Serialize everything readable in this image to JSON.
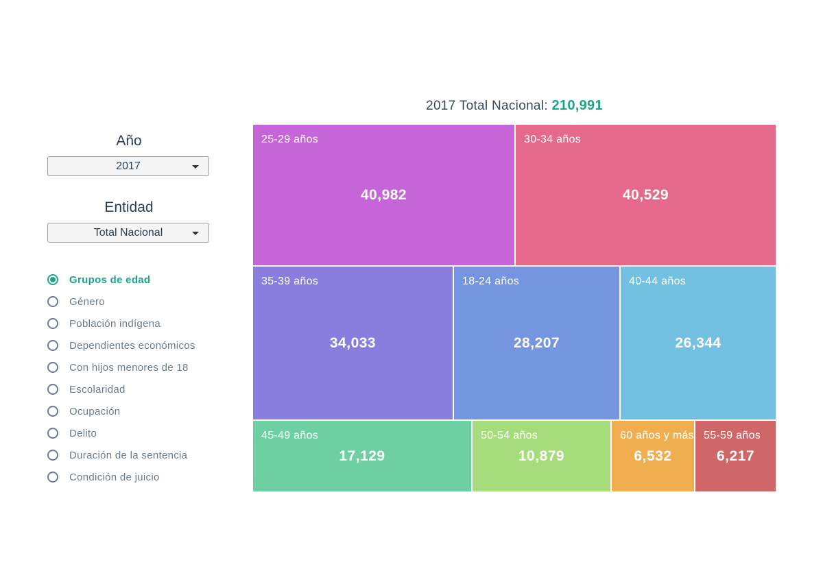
{
  "controls": {
    "year_label": "Año",
    "year_value": "2017",
    "entity_label": "Entidad",
    "entity_value": "Total Nacional"
  },
  "radios": [
    {
      "label": "Grupos de edad",
      "selected": true
    },
    {
      "label": "Género",
      "selected": false
    },
    {
      "label": "Población indígena",
      "selected": false
    },
    {
      "label": "Dependientes económicos",
      "selected": false
    },
    {
      "label": "Con hijos menores de 18",
      "selected": false
    },
    {
      "label": "Escolaridad",
      "selected": false
    },
    {
      "label": "Ocupación",
      "selected": false
    },
    {
      "label": "Delito",
      "selected": false
    },
    {
      "label": "Duración de la sentencia",
      "selected": false
    },
    {
      "label": "Condición de juicio",
      "selected": false
    }
  ],
  "colors": {
    "accent": "#1fa18a"
  },
  "chart_data": {
    "type": "treemap",
    "title_prefix": "2017 Total Nacional:",
    "total": "210,991",
    "items": [
      {
        "label": "25-29 años",
        "value": 40982,
        "display": "40,982",
        "color": "#c665d8"
      },
      {
        "label": "30-34 años",
        "value": 40529,
        "display": "40,529",
        "color": "#e4698b"
      },
      {
        "label": "35-39 años",
        "value": 34033,
        "display": "34,033",
        "color": "#897ede"
      },
      {
        "label": "18-24 años",
        "value": 28207,
        "display": "28,207",
        "color": "#7595e0"
      },
      {
        "label": "40-44 años",
        "value": 26344,
        "display": "26,344",
        "color": "#72c1e2"
      },
      {
        "label": "45-49 años",
        "value": 17129,
        "display": "17,129",
        "color": "#6dcfa2"
      },
      {
        "label": "50-54 años",
        "value": 10879,
        "display": "10,879",
        "color": "#a7dc7d"
      },
      {
        "label": "60 años y más",
        "value": 6532,
        "display": "6,532",
        "color": "#efaf50"
      },
      {
        "label": "55-59 años",
        "value": 6217,
        "display": "6,217",
        "color": "#cf6769"
      }
    ]
  }
}
